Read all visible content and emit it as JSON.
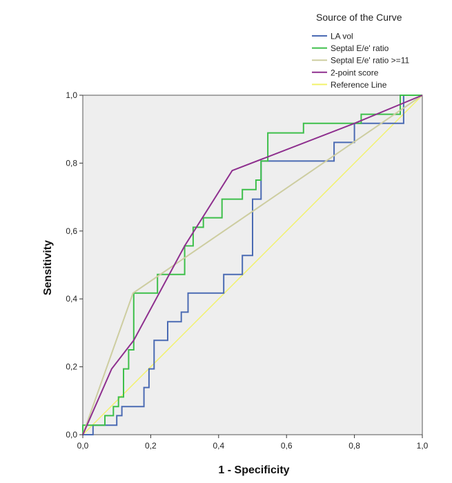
{
  "chart_data": {
    "type": "line",
    "xlabel": "1 - Specificity",
    "ylabel": "Sensitivity",
    "xlim": [
      0,
      1
    ],
    "ylim": [
      0,
      1
    ],
    "xticks": [
      0,
      0.2,
      0.4,
      0.6,
      0.8,
      1.0
    ],
    "yticks": [
      0,
      0.2,
      0.4,
      0.6,
      0.8,
      1.0
    ],
    "xtick_labels": [
      "0,0",
      "0,2",
      "0,4",
      "0,6",
      "0,8",
      "1,0"
    ],
    "ytick_labels": [
      "0,0",
      "0,2",
      "0,4",
      "0,6",
      "0,8",
      "1,0"
    ],
    "grid": false,
    "plot_background": "#eeeeee",
    "legend": {
      "title": "Source of the Curve",
      "position": "top-right"
    },
    "series": [
      {
        "name": "LA vol",
        "color": "#4a6ab3",
        "step": true,
        "points": [
          [
            0,
            0
          ],
          [
            0.03,
            0
          ],
          [
            0.03,
            0.028
          ],
          [
            0.1,
            0.028
          ],
          [
            0.1,
            0.056
          ],
          [
            0.115,
            0.056
          ],
          [
            0.115,
            0.083
          ],
          [
            0.18,
            0.083
          ],
          [
            0.18,
            0.139
          ],
          [
            0.195,
            0.139
          ],
          [
            0.195,
            0.194
          ],
          [
            0.21,
            0.194
          ],
          [
            0.21,
            0.278
          ],
          [
            0.25,
            0.278
          ],
          [
            0.25,
            0.333
          ],
          [
            0.29,
            0.333
          ],
          [
            0.29,
            0.361
          ],
          [
            0.31,
            0.361
          ],
          [
            0.31,
            0.417
          ],
          [
            0.415,
            0.417
          ],
          [
            0.415,
            0.472
          ],
          [
            0.47,
            0.472
          ],
          [
            0.47,
            0.528
          ],
          [
            0.5,
            0.528
          ],
          [
            0.5,
            0.694
          ],
          [
            0.525,
            0.694
          ],
          [
            0.525,
            0.806
          ],
          [
            0.74,
            0.806
          ],
          [
            0.74,
            0.861
          ],
          [
            0.8,
            0.861
          ],
          [
            0.8,
            0.917
          ],
          [
            0.945,
            0.917
          ],
          [
            0.945,
            1.0
          ],
          [
            1.0,
            1.0
          ]
        ]
      },
      {
        "name": "Septal E/e' ratio",
        "color": "#3dbf4a",
        "step": true,
        "points": [
          [
            0,
            0
          ],
          [
            0,
            0.028
          ],
          [
            0.065,
            0.028
          ],
          [
            0.065,
            0.056
          ],
          [
            0.09,
            0.056
          ],
          [
            0.09,
            0.083
          ],
          [
            0.105,
            0.083
          ],
          [
            0.105,
            0.111
          ],
          [
            0.12,
            0.111
          ],
          [
            0.12,
            0.194
          ],
          [
            0.135,
            0.194
          ],
          [
            0.135,
            0.25
          ],
          [
            0.15,
            0.25
          ],
          [
            0.15,
            0.417
          ],
          [
            0.22,
            0.417
          ],
          [
            0.22,
            0.472
          ],
          [
            0.3,
            0.472
          ],
          [
            0.3,
            0.556
          ],
          [
            0.325,
            0.556
          ],
          [
            0.325,
            0.611
          ],
          [
            0.355,
            0.611
          ],
          [
            0.355,
            0.639
          ],
          [
            0.41,
            0.639
          ],
          [
            0.41,
            0.694
          ],
          [
            0.47,
            0.694
          ],
          [
            0.47,
            0.722
          ],
          [
            0.51,
            0.722
          ],
          [
            0.51,
            0.75
          ],
          [
            0.525,
            0.75
          ],
          [
            0.525,
            0.806
          ],
          [
            0.545,
            0.806
          ],
          [
            0.545,
            0.889
          ],
          [
            0.65,
            0.889
          ],
          [
            0.65,
            0.917
          ],
          [
            0.82,
            0.917
          ],
          [
            0.82,
            0.944
          ],
          [
            0.935,
            0.944
          ],
          [
            0.935,
            1.0
          ],
          [
            1.0,
            1.0
          ]
        ]
      },
      {
        "name": "Septal E/e' ratio >=11",
        "color": "#cdcda0",
        "step": false,
        "points": [
          [
            0,
            0
          ],
          [
            0.148,
            0.417
          ],
          [
            1.0,
            1.0
          ]
        ]
      },
      {
        "name": "2-point score",
        "color": "#8e2f8e",
        "step": false,
        "points": [
          [
            0,
            0
          ],
          [
            0.085,
            0.194
          ],
          [
            0.15,
            0.278
          ],
          [
            0.3,
            0.556
          ],
          [
            0.44,
            0.778
          ],
          [
            0.8,
            0.917
          ],
          [
            1.0,
            1.0
          ]
        ]
      },
      {
        "name": "Reference Line",
        "color": "#f2f26a",
        "step": false,
        "points": [
          [
            0,
            0
          ],
          [
            1,
            1
          ]
        ]
      }
    ]
  }
}
